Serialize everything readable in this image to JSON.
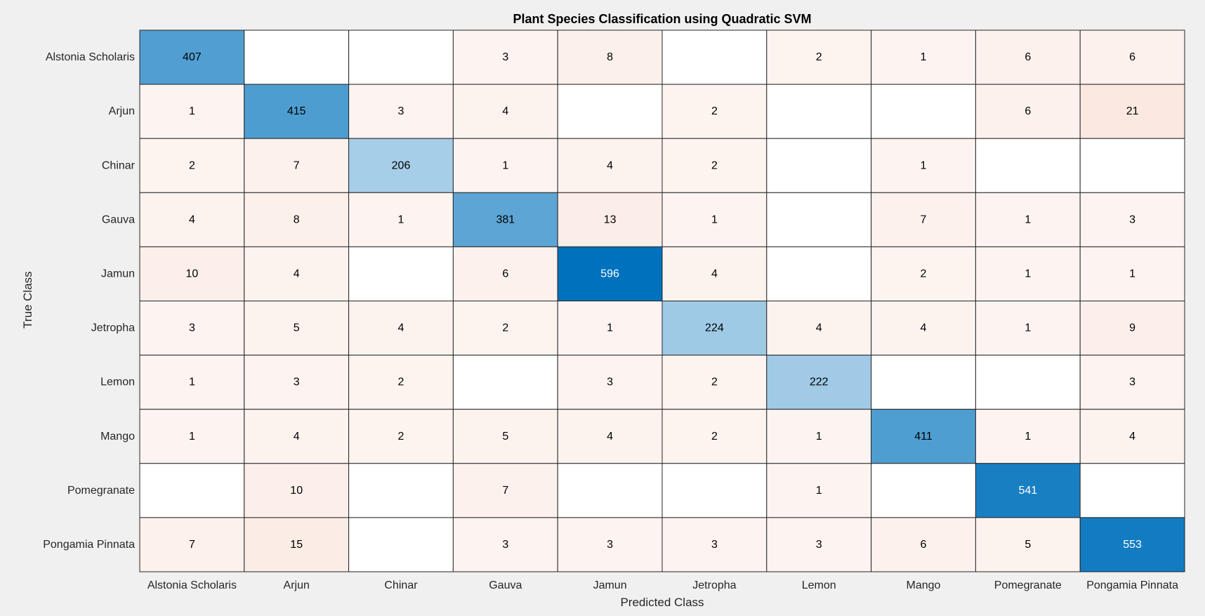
{
  "chart_data": {
    "type": "heatmap",
    "title": "Plant Species Classification using Quadratic SVM",
    "xlabel": "Predicted Class",
    "ylabel": "True Class",
    "row_labels": [
      "Alstonia Scholaris",
      "Arjun",
      "Chinar",
      "Gauva",
      "Jamun",
      "Jetropha",
      "Lemon",
      "Mango",
      "Pomegranate",
      "Pongamia Pinnata"
    ],
    "col_labels": [
      "Alstonia Scholaris",
      "Arjun",
      "Chinar",
      "Gauva",
      "Jamun",
      "Jetropha",
      "Lemon",
      "Mango",
      "Pomegranate",
      "Pongamia Pinnata"
    ],
    "matrix": [
      [
        407,
        null,
        null,
        3,
        8,
        null,
        2,
        1,
        6,
        6
      ],
      [
        1,
        415,
        3,
        4,
        null,
        2,
        null,
        null,
        6,
        21
      ],
      [
        2,
        7,
        206,
        1,
        4,
        2,
        null,
        1,
        null,
        null
      ],
      [
        4,
        8,
        1,
        381,
        13,
        1,
        null,
        7,
        1,
        3
      ],
      [
        10,
        4,
        null,
        6,
        596,
        4,
        null,
        2,
        1,
        1
      ],
      [
        3,
        5,
        4,
        2,
        1,
        224,
        4,
        4,
        1,
        9
      ],
      [
        1,
        3,
        2,
        null,
        3,
        2,
        222,
        null,
        null,
        3
      ],
      [
        1,
        4,
        2,
        5,
        4,
        2,
        1,
        411,
        1,
        4
      ],
      [
        null,
        10,
        null,
        7,
        null,
        null,
        1,
        null,
        541,
        null
      ],
      [
        7,
        15,
        null,
        3,
        3,
        3,
        3,
        6,
        5,
        553
      ]
    ],
    "colors": {
      "diagonal_dark": "#0072bd",
      "diagonal_light": "#ffffff",
      "offdiag_base": "#fdf5f2",
      "offdiag_dark": "#d95319",
      "empty": "#ffffff",
      "grid": "#262626",
      "background": "#f0f0f0"
    }
  }
}
